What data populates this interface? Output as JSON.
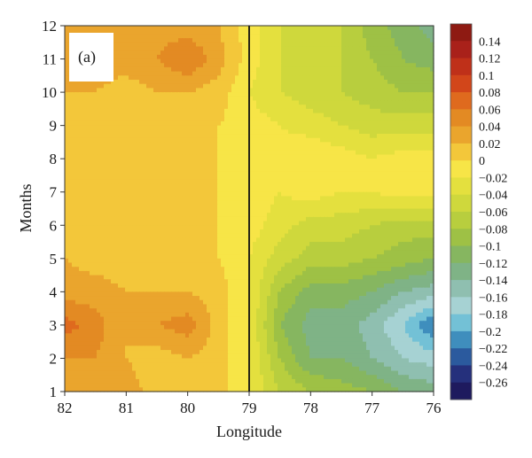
{
  "chart_data": {
    "type": "heatmap",
    "panel_label": "(a)",
    "xlabel": "Longitude",
    "ylabel": "Months",
    "xlim": [
      82,
      76
    ],
    "ylim": [
      1,
      12
    ],
    "x_ticks": [
      "82",
      "81",
      "80",
      "79",
      "78",
      "77",
      "76"
    ],
    "y_ticks": [
      "1",
      "2",
      "3",
      "4",
      "5",
      "6",
      "7",
      "8",
      "9",
      "10",
      "11",
      "12"
    ],
    "colorbar": {
      "labels": [
        "0.14",
        "0.12",
        "0.1",
        "0.08",
        "0.06",
        "0.04",
        "0.02",
        "0",
        "−0.02",
        "−0.04",
        "−0.06",
        "−0.08",
        "−0.1",
        "−0.12",
        "−0.14",
        "−0.16",
        "−0.18",
        "−0.2",
        "−0.22",
        "−0.24",
        "−0.26"
      ],
      "colors": [
        "#8e1a12",
        "#a9211a",
        "#bf3019",
        "#d2461a",
        "#df6a1e",
        "#e38a23",
        "#eaa52d",
        "#f3c73a",
        "#f7e547",
        "#e4e03e",
        "#cfd83c",
        "#b8ce3e",
        "#9ec145",
        "#86b660",
        "#7fb386",
        "#8fbfb0",
        "#a6d2d3",
        "#73c1d6",
        "#3f8ebd",
        "#2b5a9e",
        "#25307c",
        "#1e1a5e"
      ]
    },
    "divider_longitude": 79,
    "longitudes": [
      82,
      81.5,
      81,
      80.5,
      80,
      79.5,
      79,
      78.5,
      78,
      77.5,
      77,
      76.5,
      76
    ],
    "months": [
      1,
      2,
      3,
      4,
      5,
      6,
      7,
      8,
      9,
      10,
      11,
      12
    ],
    "values": [
      [
        0.03,
        0.03,
        0.03,
        0.01,
        0.01,
        0.01,
        -0.02,
        -0.06,
        -0.08,
        -0.09,
        -0.1,
        -0.12,
        -0.13
      ],
      [
        0.04,
        0.04,
        0.02,
        0.01,
        0.02,
        0.01,
        -0.02,
        -0.08,
        -0.12,
        -0.12,
        -0.14,
        -0.16,
        -0.17
      ],
      [
        0.07,
        0.05,
        0.02,
        0.04,
        0.05,
        0.01,
        -0.02,
        -0.1,
        -0.13,
        -0.13,
        -0.15,
        -0.18,
        -0.22
      ],
      [
        0.03,
        0.03,
        0.02,
        0.02,
        0.02,
        0.01,
        -0.02,
        -0.08,
        -0.11,
        -0.11,
        -0.12,
        -0.14,
        -0.15
      ],
      [
        0.02,
        0.01,
        0.01,
        0.01,
        0.01,
        0.0,
        -0.02,
        -0.05,
        -0.07,
        -0.07,
        -0.08,
        -0.09,
        -0.1
      ],
      [
        0.01,
        0.01,
        0.01,
        0.01,
        0.01,
        0.0,
        -0.01,
        -0.03,
        -0.05,
        -0.05,
        -0.06,
        -0.07,
        -0.07
      ],
      [
        0.01,
        0.01,
        0.0,
        0.01,
        0.01,
        0.0,
        -0.01,
        -0.02,
        -0.01,
        -0.02,
        -0.02,
        -0.01,
        -0.01
      ],
      [
        0.01,
        0.02,
        0.0,
        0.01,
        0.01,
        0.0,
        0.0,
        -0.01,
        0.0,
        -0.01,
        -0.02,
        -0.01,
        -0.01
      ],
      [
        0.01,
        0.01,
        0.01,
        0.01,
        0.01,
        0.0,
        -0.01,
        -0.02,
        -0.03,
        -0.04,
        -0.05,
        -0.05,
        -0.05
      ],
      [
        0.02,
        0.02,
        0.01,
        0.02,
        0.02,
        0.01,
        -0.02,
        -0.04,
        -0.05,
        -0.06,
        -0.07,
        -0.08,
        -0.08
      ],
      [
        0.03,
        0.03,
        0.03,
        0.04,
        0.06,
        0.03,
        -0.01,
        -0.04,
        -0.05,
        -0.06,
        -0.08,
        -0.1,
        -0.11
      ],
      [
        0.03,
        0.03,
        0.03,
        0.03,
        0.03,
        0.02,
        -0.01,
        -0.04,
        -0.05,
        -0.06,
        -0.09,
        -0.11,
        -0.13
      ]
    ]
  }
}
